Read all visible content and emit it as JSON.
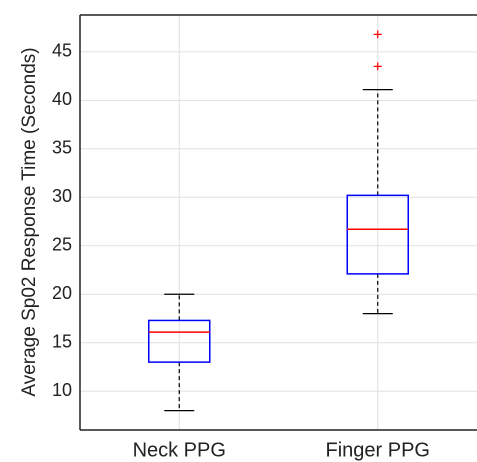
{
  "chart_data": {
    "type": "box",
    "y_label": "Average Sp02 Response Time (Seconds)",
    "categories": [
      "Neck PPG",
      "Finger PPG"
    ],
    "boxes": [
      {
        "whisker_low": 8.0,
        "q1": 13.0,
        "median": 16.1,
        "q3": 17.3,
        "whisker_high": 20.0,
        "outliers": []
      },
      {
        "whisker_low": 18.0,
        "q1": 22.1,
        "median": 26.7,
        "q3": 30.2,
        "whisker_high": 41.1,
        "outliers": [
          43.5,
          46.8
        ]
      }
    ],
    "box_color": "#0000ff",
    "median_color": "#ff0000",
    "whisker_color": "#000000",
    "outlier_color": "#ff0000",
    "ylim": [
      6,
      48.8
    ],
    "yticks": [
      10,
      15,
      20,
      25,
      30,
      35,
      40,
      45
    ],
    "grid": true
  }
}
